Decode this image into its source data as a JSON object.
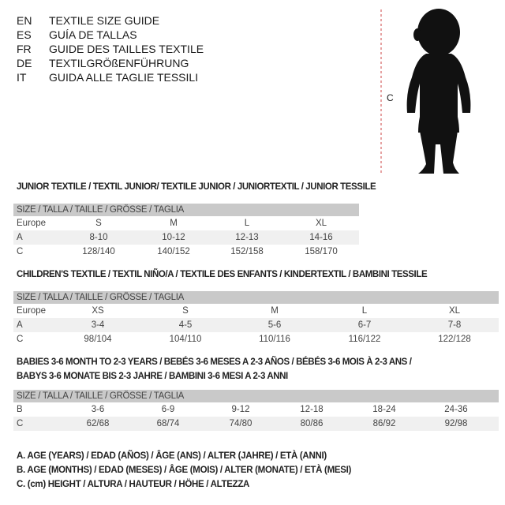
{
  "titles": [
    {
      "code": "EN",
      "text": "TEXTILE SIZE GUIDE"
    },
    {
      "code": "ES",
      "text": "GUÍA DE TALLAS"
    },
    {
      "code": "FR",
      "text": "GUIDE DES TAILLES TEXTILE"
    },
    {
      "code": "DE",
      "text": "TEXTILGRÖßENFÜHRUNG"
    },
    {
      "code": "IT",
      "text": "GUIDA ALLE TAGLIE TESSILI"
    }
  ],
  "figure": {
    "measure_label": "C"
  },
  "junior": {
    "heading": "JUNIOR TEXTILE / TEXTIL JUNIOR/ TEXTILE JUNIOR / JUNIORTEXTIL / JUNIOR TESSILE",
    "header": "SIZE / TALLA / TAILLE / GRÖSSE / TAGLIA",
    "rows": [
      {
        "label": "Europe",
        "values": [
          "S",
          "M",
          "L",
          "XL"
        ]
      },
      {
        "label": "A",
        "values": [
          "8-10",
          "10-12",
          "12-13",
          "14-16"
        ]
      },
      {
        "label": "C",
        "values": [
          "128/140",
          "140/152",
          "152/158",
          "158/170"
        ]
      }
    ]
  },
  "children": {
    "heading": "CHILDREN'S TEXTILE / TEXTIL NIÑO/A / TEXTILE DES ENFANTS / KINDERTEXTIL / BAMBINI TESSILE",
    "header": "SIZE / TALLA / TAILLE / GRÖSSE / TAGLIA",
    "rows": [
      {
        "label": "Europe",
        "values": [
          "XS",
          "S",
          "M",
          "L",
          "XL"
        ]
      },
      {
        "label": "A",
        "values": [
          "3-4",
          "4-5",
          "5-6",
          "6-7",
          "7-8"
        ]
      },
      {
        "label": "C",
        "values": [
          "98/104",
          "104/110",
          "110/116",
          "116/122",
          "122/128"
        ]
      }
    ]
  },
  "babies": {
    "heading_line1": "BABIES 3-6 MONTH TO 2-3 YEARS / BEBÉS 3-6 MESES A 2-3 AÑOS / BÉBÉS 3-6 MOIS À 2-3 ANS /",
    "heading_line2": "BABYS 3-6 MONATE BIS 2-3 JAHRE / BAMBINI 3-6 MESI A 2-3 ANNI",
    "header": "SIZE / TALLA / TAILLE / GRÖSSE / TAGLIA",
    "rows": [
      {
        "label": "B",
        "values": [
          "3-6",
          "6-9",
          "9-12",
          "12-18",
          "18-24",
          "24-36"
        ]
      },
      {
        "label": "C",
        "values": [
          "62/68",
          "68/74",
          "74/80",
          "80/86",
          "86/92",
          "92/98"
        ]
      }
    ]
  },
  "legend": [
    "A. AGE (YEARS) / EDAD (AÑOS) / ÂGE (ANS) / ALTER (JAHRE) / ETÀ (ANNI)",
    "B. AGE (MONTHS) / EDAD (MESES) / ÂGE (MOIS) / ALTER (MONATE) / ETÀ (MESI)",
    "C. (cm) HEIGHT / ALTURA / HAUTEUR / HÖHE / ALTEZZA"
  ]
}
